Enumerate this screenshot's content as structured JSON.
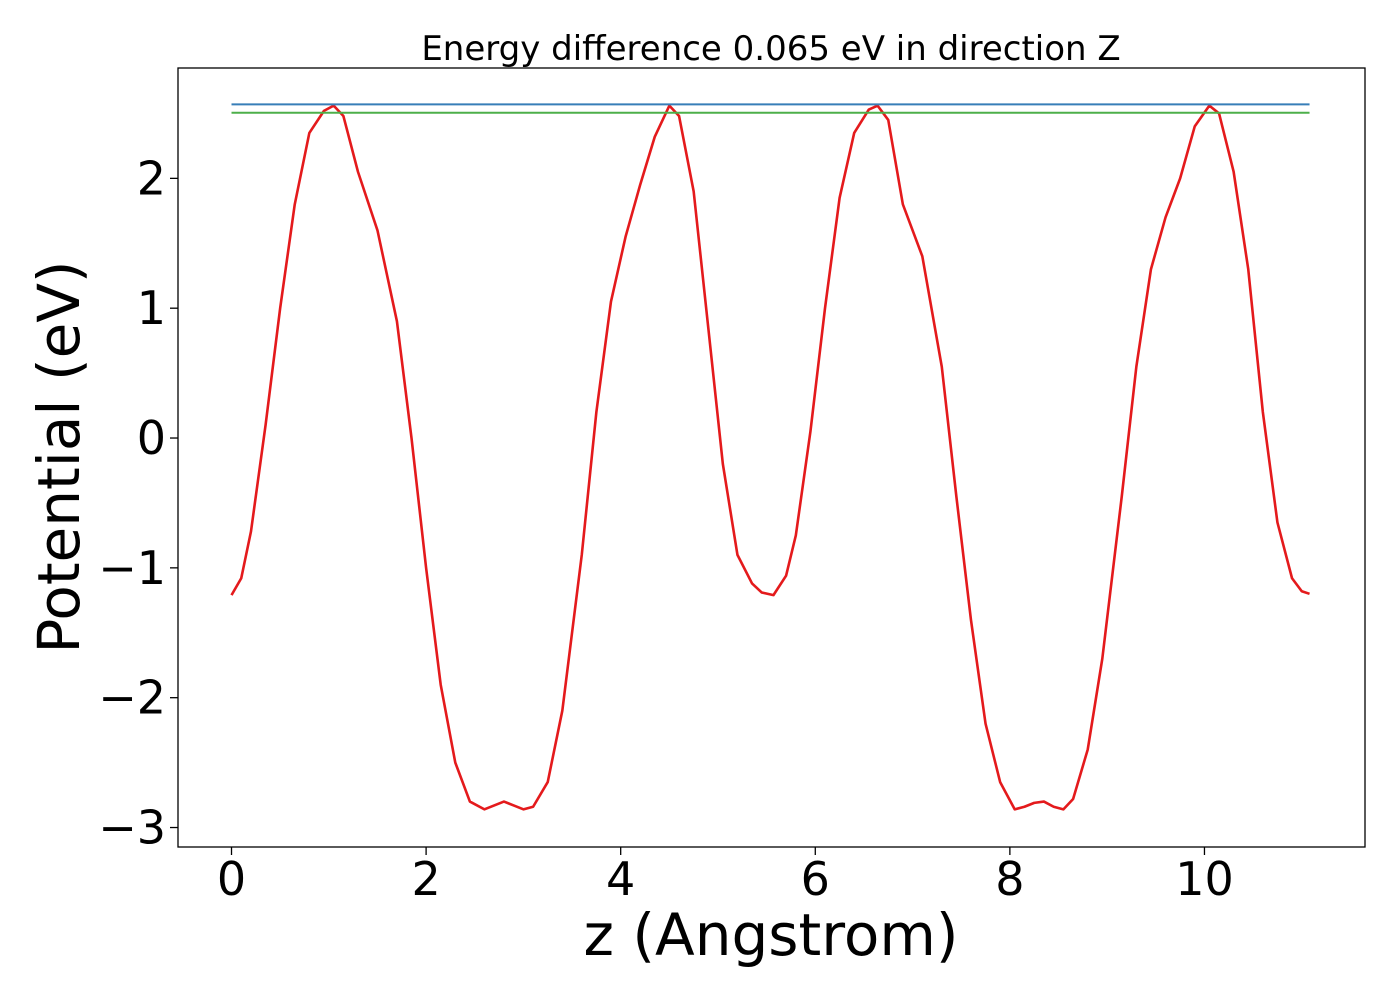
{
  "chart_data": {
    "type": "line",
    "title": "Energy difference 0.065 eV in direction Z",
    "xlabel": "z (Angstrom)",
    "ylabel": "Potential (eV)",
    "xlim": [
      -0.55,
      11.65
    ],
    "ylim": [
      -3.15,
      2.85
    ],
    "xticks": [
      0,
      2,
      4,
      6,
      8,
      10
    ],
    "xtick_labels": [
      "0",
      "2",
      "4",
      "6",
      "8",
      "10"
    ],
    "yticks": [
      -3,
      -2,
      -1,
      0,
      1,
      2
    ],
    "ytick_labels": [
      "−3",
      "−2",
      "−1",
      "0",
      "1",
      "2"
    ],
    "grid": false,
    "series": [
      {
        "name": "potential",
        "color": "#e41a1c",
        "x": [
          0.0,
          0.1,
          0.2,
          0.35,
          0.5,
          0.65,
          0.8,
          0.95,
          1.05,
          1.15,
          1.3,
          1.5,
          1.7,
          1.85,
          2.0,
          2.15,
          2.3,
          2.45,
          2.6,
          2.7,
          2.8,
          2.9,
          3.0,
          3.1,
          3.25,
          3.4,
          3.6,
          3.75,
          3.9,
          4.05,
          4.2,
          4.35,
          4.5,
          4.6,
          4.75,
          4.9,
          5.05,
          5.2,
          5.35,
          5.45,
          5.57,
          5.7,
          5.8,
          5.95,
          6.1,
          6.25,
          6.4,
          6.55,
          6.64,
          6.75,
          6.9,
          7.1,
          7.3,
          7.45,
          7.6,
          7.75,
          7.9,
          8.05,
          8.15,
          8.25,
          8.35,
          8.45,
          8.55,
          8.65,
          8.8,
          8.95,
          9.15,
          9.3,
          9.45,
          9.6,
          9.75,
          9.9,
          10.05,
          10.15,
          10.3,
          10.45,
          10.6,
          10.75,
          10.9,
          11.0,
          11.08
        ],
        "y": [
          -1.21,
          -1.08,
          -0.72,
          0.1,
          1.0,
          1.8,
          2.35,
          2.52,
          2.56,
          2.48,
          2.05,
          1.6,
          0.9,
          0.0,
          -1.0,
          -1.9,
          -2.5,
          -2.8,
          -2.86,
          -2.83,
          -2.8,
          -2.83,
          -2.86,
          -2.84,
          -2.65,
          -2.1,
          -0.9,
          0.2,
          1.05,
          1.55,
          1.95,
          2.32,
          2.56,
          2.48,
          1.9,
          0.85,
          -0.2,
          -0.9,
          -1.12,
          -1.19,
          -1.21,
          -1.06,
          -0.75,
          0.05,
          1.0,
          1.85,
          2.35,
          2.53,
          2.56,
          2.45,
          1.8,
          1.4,
          0.55,
          -0.45,
          -1.4,
          -2.2,
          -2.65,
          -2.86,
          -2.84,
          -2.81,
          -2.8,
          -2.84,
          -2.86,
          -2.78,
          -2.4,
          -1.7,
          -0.45,
          0.55,
          1.3,
          1.7,
          2.0,
          2.4,
          2.56,
          2.5,
          2.05,
          1.3,
          0.2,
          -0.65,
          -1.08,
          -1.18,
          -1.2
        ]
      },
      {
        "name": "reference-upper",
        "color": "#377eb8",
        "x": [
          0.0,
          11.08
        ],
        "y": [
          2.57,
          2.57
        ]
      },
      {
        "name": "reference-lower",
        "color": "#4daf4a",
        "x": [
          0.0,
          11.08
        ],
        "y": [
          2.505,
          2.505
        ]
      }
    ]
  }
}
